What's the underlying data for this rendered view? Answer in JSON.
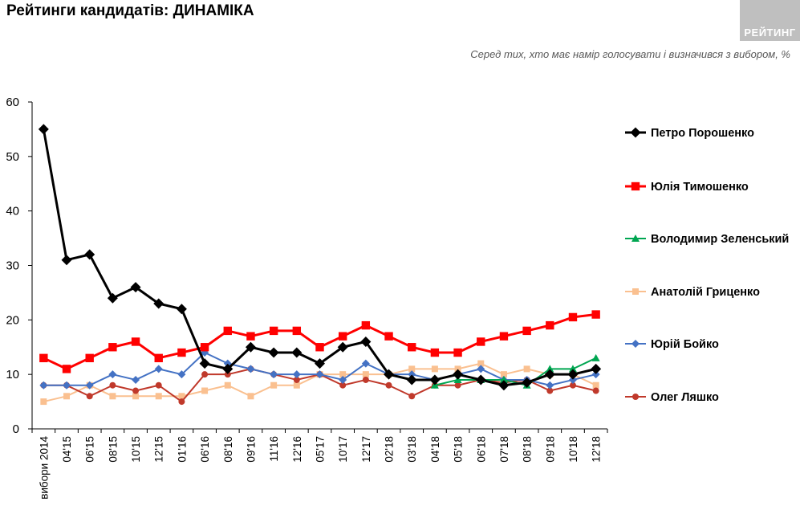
{
  "header": {
    "title": "Рейтинги кандидатів: ДИНАМІКА",
    "subtitle": "Серед тих, хто має намір голосувати і визначився з вибором, %",
    "logo_text": "РЕЙТИНГ"
  },
  "chart_data": {
    "type": "line",
    "ylim": [
      0,
      60
    ],
    "yticks": [
      0,
      10,
      20,
      30,
      40,
      50,
      60
    ],
    "categories": [
      "вибори 2014",
      "04'15",
      "06'15",
      "08'15",
      "10'15",
      "12'15",
      "01'16",
      "06'16",
      "08'16",
      "09'16",
      "11'16",
      "12'16",
      "05'17",
      "10'17",
      "12'17",
      "02'18",
      "03'18",
      "04'18",
      "05'18",
      "06'18",
      "07'18",
      "08'18",
      "09'18",
      "10'18",
      "12'18"
    ],
    "legend_position": "right",
    "grid": false,
    "series": [
      {
        "name": "Петро Порошенко",
        "color": "#000000",
        "marker": "diamond",
        "line_width": 3,
        "values": [
          55,
          31,
          32,
          24,
          26,
          23,
          22,
          12,
          11,
          15,
          14,
          14,
          12,
          15,
          16,
          10,
          9,
          9,
          10,
          9,
          8,
          8.5,
          10,
          10,
          11
        ]
      },
      {
        "name": "Юлія Тимошенко",
        "color": "#ff0000",
        "marker": "square",
        "line_width": 3,
        "values": [
          13,
          11,
          13,
          15,
          16,
          13,
          14,
          15,
          18,
          17,
          18,
          18,
          15,
          17,
          19,
          17,
          15,
          14,
          14,
          16,
          17,
          18,
          19,
          20.5,
          21
        ]
      },
      {
        "name": "Володимир Зеленський",
        "color": "#00a651",
        "marker": "triangle",
        "line_width": 2,
        "values": [
          null,
          null,
          null,
          null,
          null,
          null,
          null,
          null,
          null,
          null,
          null,
          null,
          null,
          null,
          null,
          null,
          null,
          8,
          9,
          9,
          9,
          8,
          11,
          11,
          13
        ]
      },
      {
        "name": "Анатолій Гриценко",
        "color": "#fac090",
        "marker": "square",
        "line_width": 2,
        "values": [
          5,
          6,
          8,
          6,
          6,
          6,
          6,
          7,
          8,
          6,
          8,
          8,
          10,
          10,
          10,
          10,
          11,
          11,
          11,
          12,
          10,
          11,
          10,
          10,
          8
        ]
      },
      {
        "name": "Юрій Бойко",
        "color": "#4472c4",
        "marker": "diamond",
        "line_width": 2,
        "values": [
          8,
          8,
          8,
          10,
          9,
          11,
          10,
          14,
          12,
          11,
          10,
          10,
          10,
          9,
          12,
          10,
          10,
          9,
          10,
          11,
          9,
          9,
          8,
          9,
          10
        ]
      },
      {
        "name": "Олег Ляшко",
        "color": "#c0392b",
        "marker": "circle",
        "line_width": 2,
        "values": [
          8,
          8,
          6,
          8,
          7,
          8,
          5,
          10,
          10,
          11,
          10,
          9,
          10,
          8,
          9,
          8,
          6,
          8,
          8,
          9,
          8.5,
          9,
          7,
          8,
          7
        ]
      }
    ]
  }
}
